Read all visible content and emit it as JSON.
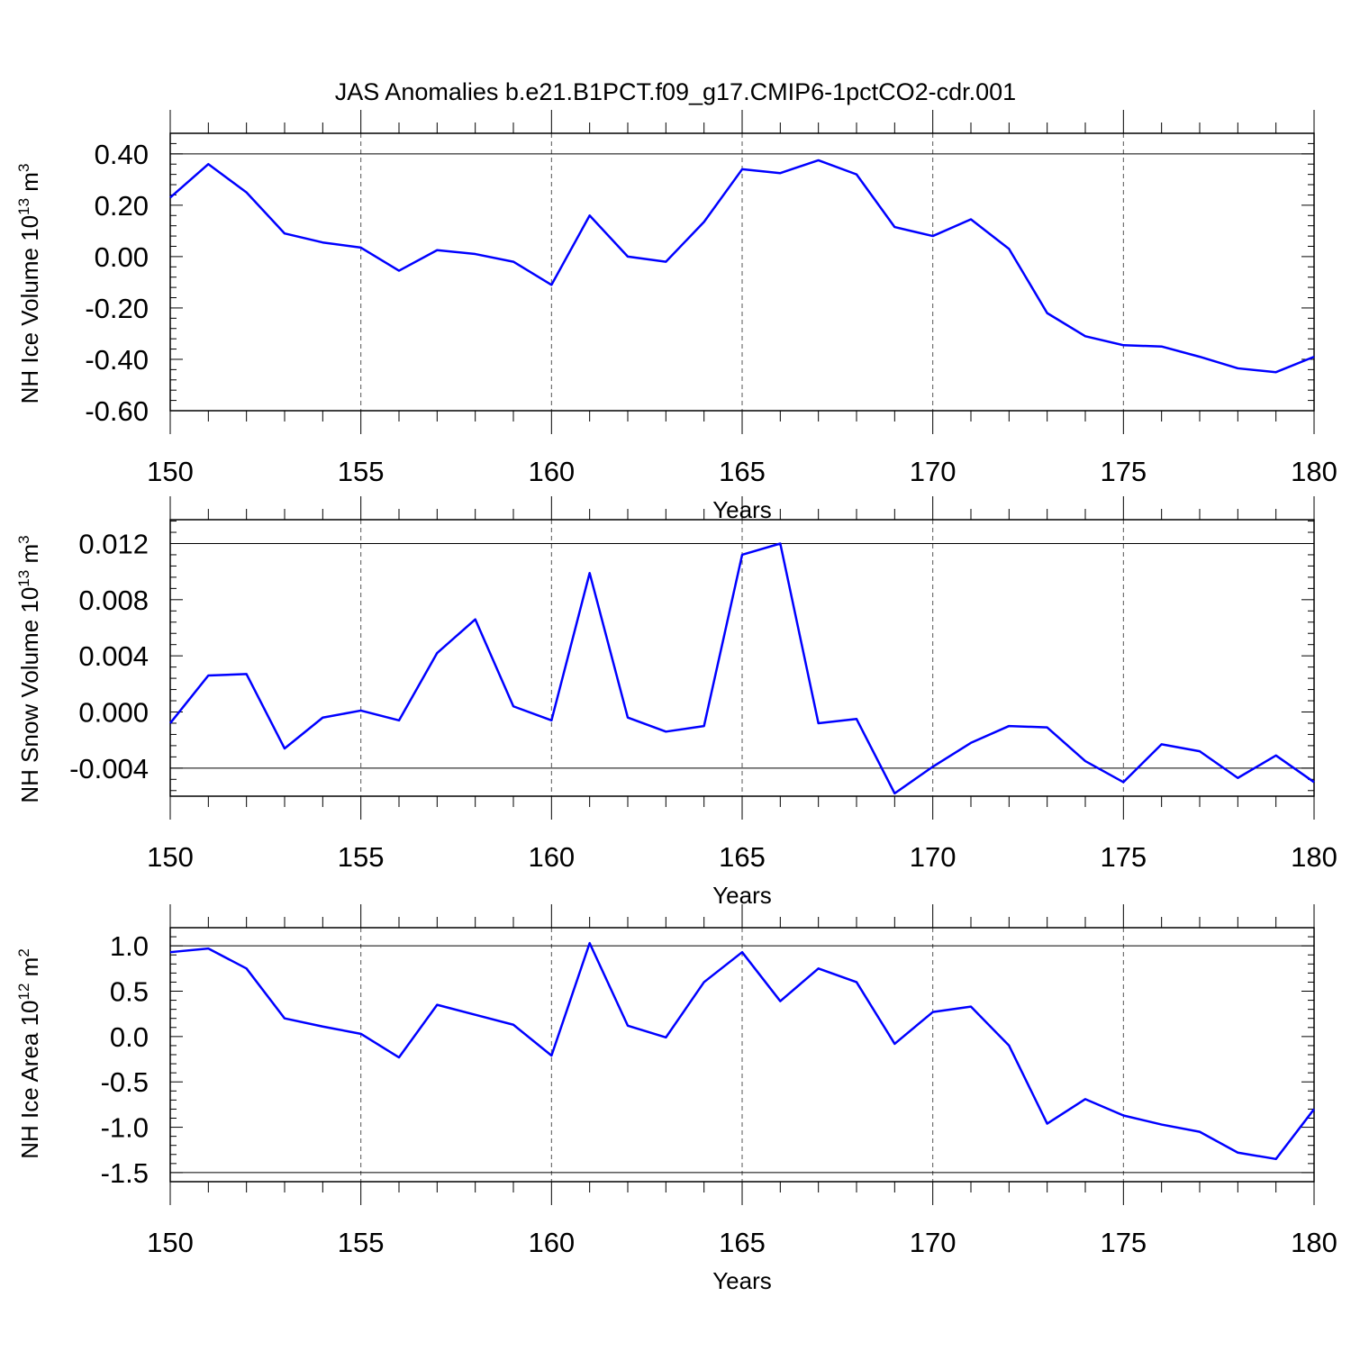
{
  "title": "JAS Anomalies b.e21.B1PCT.f09_g17.CMIP6-1pctCO2-cdr.001",
  "chart_data": [
    {
      "type": "line",
      "ylabel_main": "NH Ice Volume 10",
      "ylabel_exp": "13",
      "ylabel_unit": " m",
      "ylabel_unit_exp": "3",
      "xlabel": "Years",
      "xlim": [
        150,
        180
      ],
      "ylim": [
        -0.6,
        0.48
      ],
      "xticks": [
        150,
        155,
        160,
        165,
        170,
        175,
        180
      ],
      "xtick_labels": [
        "150",
        "155",
        "160",
        "165",
        "170",
        "175",
        "180"
      ],
      "yticks": [
        -0.6,
        -0.4,
        -0.2,
        0.0,
        0.2,
        0.4
      ],
      "ytick_labels": [
        "-0.60",
        "-0.40",
        "-0.20",
        "0.00",
        "0.20",
        "0.40"
      ],
      "grid": "vertical dashed at major x ticks",
      "line_color": "#0000ff",
      "x": [
        150,
        151,
        152,
        153,
        154,
        155,
        156,
        157,
        158,
        159,
        160,
        161,
        162,
        163,
        164,
        165,
        166,
        167,
        168,
        169,
        170,
        171,
        172,
        173,
        174,
        175,
        176,
        177,
        178,
        179,
        180
      ],
      "y": [
        0.23,
        0.36,
        0.25,
        0.09,
        0.055,
        0.035,
        -0.055,
        0.025,
        0.01,
        -0.02,
        -0.11,
        0.16,
        0.0,
        -0.02,
        0.135,
        0.34,
        0.325,
        0.375,
        0.32,
        0.115,
        0.08,
        0.145,
        0.03,
        -0.22,
        -0.31,
        -0.345,
        -0.35,
        -0.39,
        -0.435,
        -0.45,
        -0.39
      ]
    },
    {
      "type": "line",
      "ylabel_main": "NH Snow Volume 10",
      "ylabel_exp": "13",
      "ylabel_unit": " m",
      "ylabel_unit_exp": "3",
      "xlabel": "Years",
      "xlim": [
        150,
        180
      ],
      "ylim": [
        -0.006,
        0.0137
      ],
      "xticks": [
        150,
        155,
        160,
        165,
        170,
        175,
        180
      ],
      "xtick_labels": [
        "150",
        "155",
        "160",
        "165",
        "170",
        "175",
        "180"
      ],
      "yticks": [
        -0.004,
        0.0,
        0.004,
        0.008,
        0.012
      ],
      "ytick_labels": [
        "-0.004",
        "0.000",
        "0.004",
        "0.008",
        "0.012"
      ],
      "grid": "vertical dashed at major x ticks",
      "line_color": "#0000ff",
      "x": [
        150,
        151,
        152,
        153,
        154,
        155,
        156,
        157,
        158,
        159,
        160,
        161,
        162,
        163,
        164,
        165,
        166,
        167,
        168,
        169,
        170,
        171,
        172,
        173,
        174,
        175,
        176,
        177,
        178,
        179,
        180
      ],
      "y": [
        -0.0008,
        0.0026,
        0.0027,
        -0.0026,
        -0.0004,
        0.0001,
        -0.0006,
        0.0042,
        0.0066,
        0.0004,
        -0.0006,
        0.0099,
        -0.0004,
        -0.0014,
        -0.001,
        0.0112,
        0.012,
        -0.0008,
        -0.0005,
        -0.0058,
        -0.0039,
        -0.0022,
        -0.001,
        -0.0011,
        -0.0035,
        -0.005,
        -0.0023,
        -0.0028,
        -0.0047,
        -0.0031,
        -0.005
      ]
    },
    {
      "type": "line",
      "ylabel_main": "NH Ice Area 10",
      "ylabel_exp": "12",
      "ylabel_unit": " m",
      "ylabel_unit_exp": "2",
      "xlabel": "Years",
      "xlim": [
        150,
        180
      ],
      "ylim": [
        -1.6,
        1.2
      ],
      "xticks": [
        150,
        155,
        160,
        165,
        170,
        175,
        180
      ],
      "xtick_labels": [
        "150",
        "155",
        "160",
        "165",
        "170",
        "175",
        "180"
      ],
      "yticks": [
        -1.5,
        -1.0,
        -0.5,
        0.0,
        0.5,
        1.0
      ],
      "ytick_labels": [
        "-1.5",
        "-1.0",
        "-0.5",
        "0.0",
        "0.5",
        "1.0"
      ],
      "grid": "vertical dashed at major x ticks",
      "line_color": "#0000ff",
      "x": [
        150,
        151,
        152,
        153,
        154,
        155,
        156,
        157,
        158,
        159,
        160,
        161,
        162,
        163,
        164,
        165,
        166,
        167,
        168,
        169,
        170,
        171,
        172,
        173,
        174,
        175,
        176,
        177,
        178,
        179,
        180
      ],
      "y": [
        0.93,
        0.97,
        0.75,
        0.2,
        0.11,
        0.03,
        -0.23,
        0.35,
        0.24,
        0.13,
        -0.21,
        1.03,
        0.12,
        -0.01,
        0.6,
        0.93,
        0.39,
        0.75,
        0.6,
        -0.08,
        0.27,
        0.33,
        -0.1,
        -0.96,
        -0.69,
        -0.87,
        -0.97,
        -1.05,
        -1.28,
        -1.35,
        -0.8
      ]
    }
  ]
}
